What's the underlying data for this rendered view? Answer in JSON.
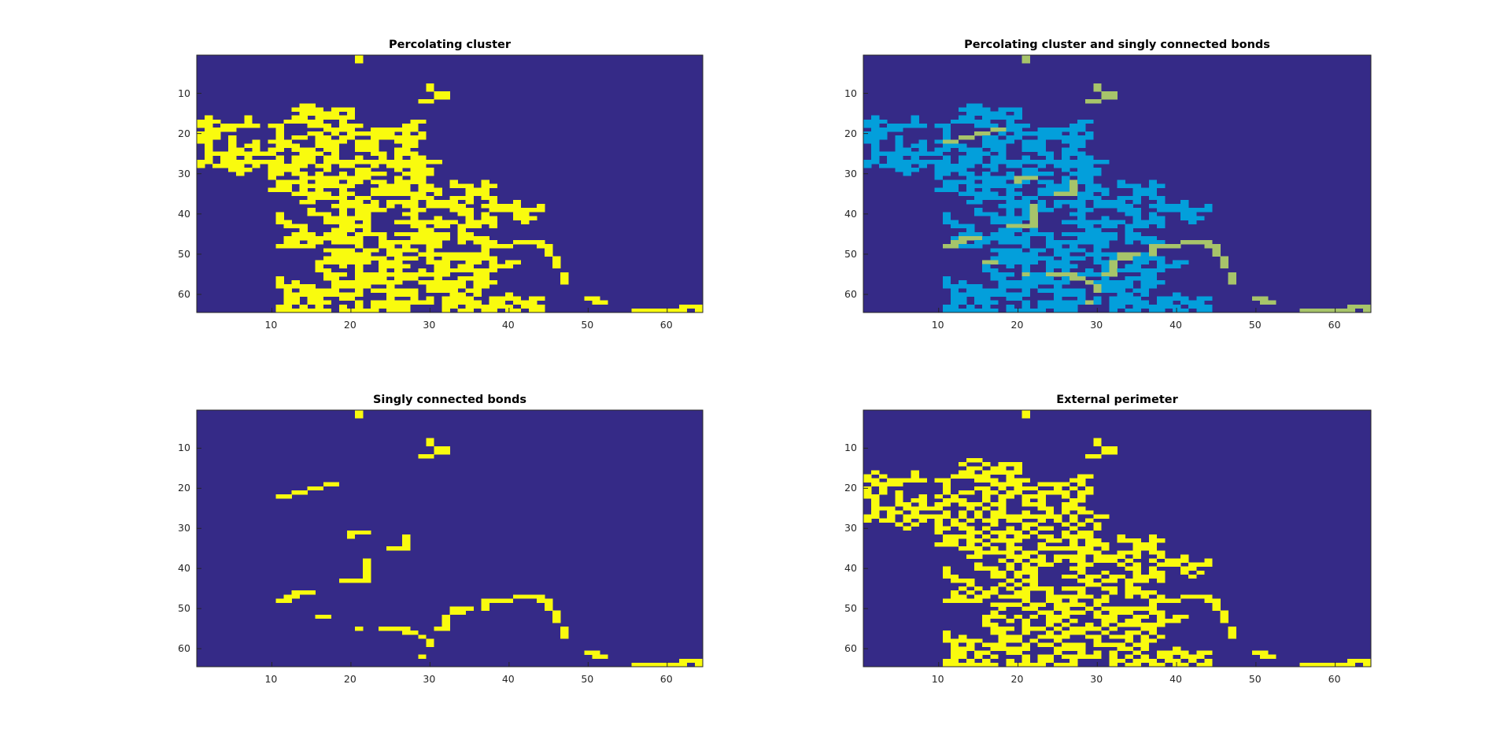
{
  "colors": {
    "background": "#352A87",
    "cluster": "#F9FB0E",
    "cluster_cyan": "#039FDB",
    "singly_connected_overlay": "#A7C46A",
    "axes": "#262626"
  },
  "chart_data": [
    {
      "type": "heatmap",
      "title": "Percolating cluster",
      "xlabel": "",
      "ylabel": "",
      "xlim": [
        0.5,
        64.5
      ],
      "ylim": [
        64.5,
        0.5
      ],
      "x_ticks": [
        "10",
        "20",
        "30",
        "40",
        "50",
        "60"
      ],
      "y_ticks": [
        "10",
        "20",
        "30",
        "40",
        "50",
        "60"
      ],
      "grid": false,
      "matrix_size": [
        64,
        64
      ],
      "colormap": "parula",
      "values": "binary percolating cluster (1 = occupied, 0 = empty)",
      "layer": "cluster"
    },
    {
      "type": "heatmap",
      "title": "Percolating cluster and singly connected bonds",
      "xlabel": "",
      "ylabel": "",
      "xlim": [
        0.5,
        64.5
      ],
      "ylim": [
        64.5,
        0.5
      ],
      "x_ticks": [
        "10",
        "20",
        "30",
        "40",
        "50",
        "60"
      ],
      "y_ticks": [
        "10",
        "20",
        "30",
        "40",
        "50",
        "60"
      ],
      "grid": false,
      "matrix_size": [
        64,
        64
      ],
      "colormap": "parula",
      "layer": "overlay"
    },
    {
      "type": "heatmap",
      "title": "Singly connected bonds",
      "xlabel": "",
      "ylabel": "",
      "xlim": [
        0.5,
        64.5
      ],
      "ylim": [
        64.5,
        0.5
      ],
      "x_ticks": [
        "10",
        "20",
        "30",
        "40",
        "50",
        "60"
      ],
      "y_ticks": [
        "10",
        "20",
        "30",
        "40",
        "50",
        "60"
      ],
      "grid": false,
      "matrix_size": [
        64,
        64
      ],
      "colormap": "parula",
      "layer": "scb"
    },
    {
      "type": "heatmap",
      "title": "External perimeter",
      "xlabel": "",
      "ylabel": "",
      "xlim": [
        0.5,
        64.5
      ],
      "ylim": [
        64.5,
        0.5
      ],
      "x_ticks": [
        "10",
        "20",
        "30",
        "40",
        "50",
        "60"
      ],
      "y_ticks": [
        "10",
        "20",
        "30",
        "40",
        "50",
        "60"
      ],
      "grid": false,
      "matrix_size": [
        64,
        64
      ],
      "colormap": "parula",
      "layer": "perimeter"
    }
  ],
  "singly_connected_cells": [
    [
      21,
      1
    ],
    [
      21,
      2
    ],
    [
      30,
      8
    ],
    [
      30,
      9
    ],
    [
      31,
      10
    ],
    [
      31,
      11
    ],
    [
      32,
      10
    ],
    [
      32,
      11
    ],
    [
      29,
      12
    ],
    [
      30,
      12
    ],
    [
      17,
      19
    ],
    [
      18,
      19
    ],
    [
      15,
      20
    ],
    [
      16,
      20
    ],
    [
      13,
      21
    ],
    [
      14,
      21
    ],
    [
      11,
      22
    ],
    [
      12,
      22
    ],
    [
      20,
      31
    ],
    [
      21,
      31
    ],
    [
      22,
      31
    ],
    [
      20,
      32
    ],
    [
      27,
      32
    ],
    [
      27,
      33
    ],
    [
      27,
      34
    ],
    [
      25,
      35
    ],
    [
      26,
      35
    ],
    [
      27,
      35
    ],
    [
      22,
      38
    ],
    [
      22,
      39
    ],
    [
      22,
      40
    ],
    [
      22,
      41
    ],
    [
      22,
      42
    ],
    [
      19,
      43
    ],
    [
      20,
      43
    ],
    [
      21,
      43
    ],
    [
      22,
      43
    ],
    [
      13,
      46
    ],
    [
      14,
      46
    ],
    [
      15,
      46
    ],
    [
      12,
      47
    ],
    [
      13,
      47
    ],
    [
      11,
      48
    ],
    [
      12,
      48
    ],
    [
      41,
      47
    ],
    [
      42,
      47
    ],
    [
      43,
      47
    ],
    [
      44,
      47
    ],
    [
      37,
      48
    ],
    [
      38,
      48
    ],
    [
      39,
      48
    ],
    [
      40,
      48
    ],
    [
      44,
      48
    ],
    [
      45,
      48
    ],
    [
      37,
      49
    ],
    [
      45,
      49
    ],
    [
      33,
      50
    ],
    [
      34,
      50
    ],
    [
      35,
      50
    ],
    [
      37,
      50
    ],
    [
      45,
      50
    ],
    [
      33,
      51
    ],
    [
      34,
      51
    ],
    [
      16,
      52
    ],
    [
      17,
      52
    ],
    [
      46,
      51
    ],
    [
      46,
      52
    ],
    [
      46,
      53
    ],
    [
      32,
      52
    ],
    [
      32,
      53
    ],
    [
      32,
      54
    ],
    [
      31,
      55
    ],
    [
      32,
      55
    ],
    [
      21,
      55
    ],
    [
      24,
      55
    ],
    [
      25,
      55
    ],
    [
      26,
      55
    ],
    [
      27,
      55
    ],
    [
      27,
      56
    ],
    [
      28,
      56
    ],
    [
      47,
      55
    ],
    [
      47,
      56
    ],
    [
      47,
      57
    ],
    [
      29,
      57
    ],
    [
      30,
      58
    ],
    [
      30,
      59
    ],
    [
      50,
      61
    ],
    [
      51,
      61
    ],
    [
      51,
      62
    ],
    [
      52,
      62
    ],
    [
      56,
      64
    ],
    [
      57,
      64
    ],
    [
      58,
      64
    ],
    [
      59,
      64
    ],
    [
      60,
      64
    ],
    [
      61,
      64
    ],
    [
      62,
      64
    ],
    [
      62,
      63
    ],
    [
      63,
      63
    ],
    [
      64,
      63
    ],
    [
      64,
      64
    ],
    [
      29,
      62
    ]
  ]
}
